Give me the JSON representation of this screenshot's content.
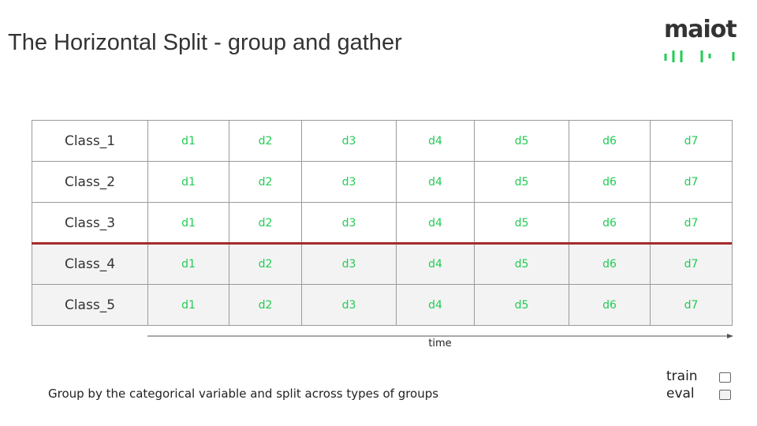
{
  "header": {
    "title": "The Horizontal Split - group and gather",
    "logo": "maiot"
  },
  "table": {
    "groups": [
      {
        "rows": [
          {
            "label": "Class_1",
            "cells": [
              "d1",
              "d2",
              "d3",
              "d4",
              "d5",
              "d6",
              "d7"
            ]
          },
          {
            "label": "Class_2",
            "cells": [
              "d1",
              "d2",
              "d3",
              "d4",
              "d5",
              "d6",
              "d7"
            ]
          },
          {
            "label": "Class_3",
            "cells": [
              "d1",
              "d2",
              "d3",
              "d4",
              "d5",
              "d6",
              "d7"
            ]
          }
        ]
      },
      {
        "rows": [
          {
            "label": "Class_4",
            "cells": [
              "d1",
              "d2",
              "d3",
              "d4",
              "d5",
              "d6",
              "d7"
            ]
          },
          {
            "label": "Class_5",
            "cells": [
              "d1",
              "d2",
              "d3",
              "d4",
              "d5",
              "d6",
              "d7"
            ]
          }
        ]
      }
    ]
  },
  "axis_label": "time",
  "caption": "Group by the categorical variable and split across types of groups",
  "legend": [
    "train",
    "eval"
  ]
}
